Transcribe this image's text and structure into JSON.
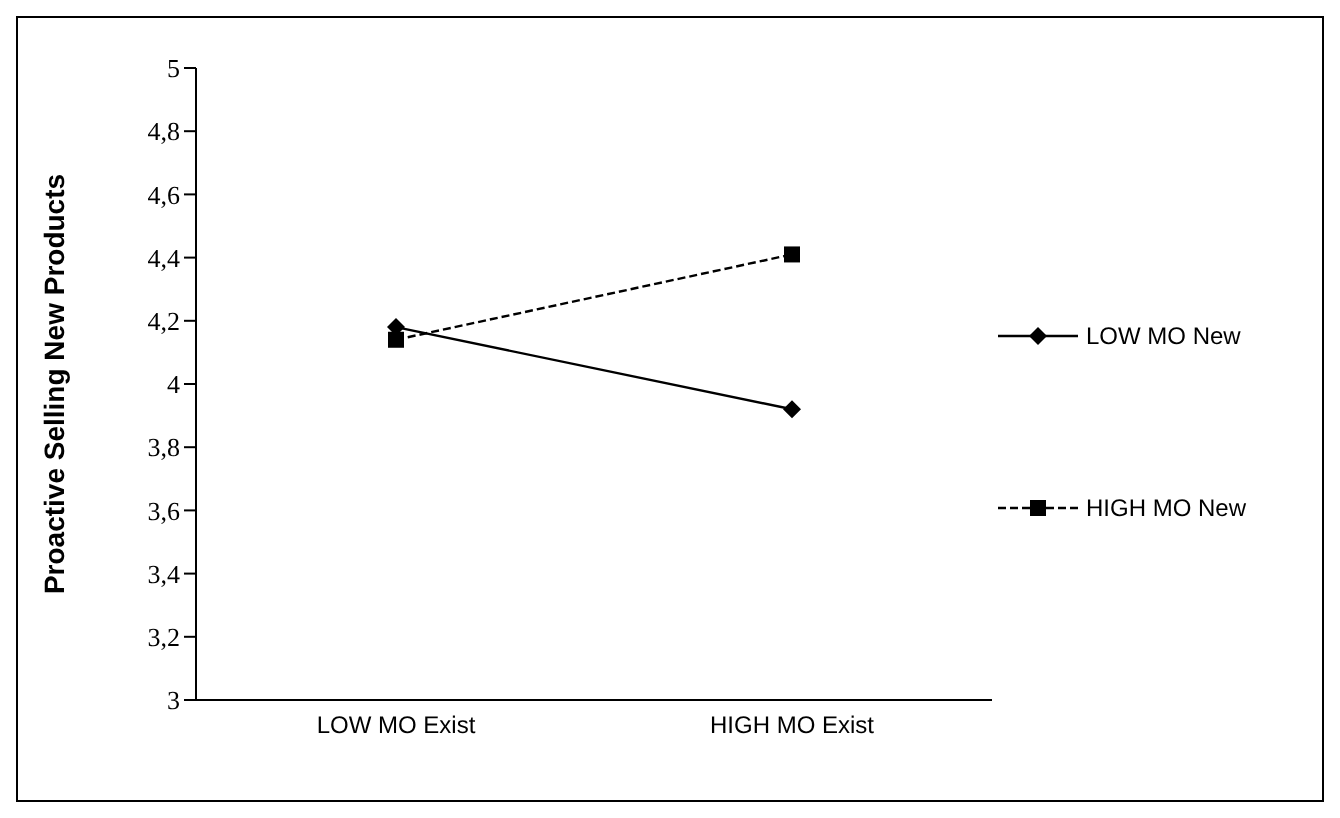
{
  "chart_data": {
    "type": "line",
    "ylabel": "Proactive Selling New Products",
    "categories": [
      "LOW MO Exist",
      "HIGH MO Exist"
    ],
    "series": [
      {
        "name": "LOW MO New",
        "color": "#000000",
        "values": [
          4.18,
          3.92
        ],
        "marker": "diamond",
        "line_style": "solid"
      },
      {
        "name": "HIGH MO New",
        "color": "#000000",
        "values": [
          4.14,
          4.41
        ],
        "marker": "square",
        "line_style": "dashed"
      }
    ],
    "ylim": [
      3,
      5
    ],
    "yticks": [
      3,
      {
        "value": 3.2,
        "label": "3,2"
      },
      {
        "value": 3.4,
        "label": "3,4"
      },
      {
        "value": 3.6,
        "label": "3,6"
      },
      {
        "value": 3.8,
        "label": "3,8"
      },
      4,
      {
        "value": 4.2,
        "label": "4,2"
      },
      {
        "value": 4.4,
        "label": "4,4"
      },
      {
        "value": 4.6,
        "label": "4,6"
      },
      {
        "value": 4.8,
        "label": "4,8"
      },
      5
    ],
    "grid": false,
    "legend": "right"
  }
}
